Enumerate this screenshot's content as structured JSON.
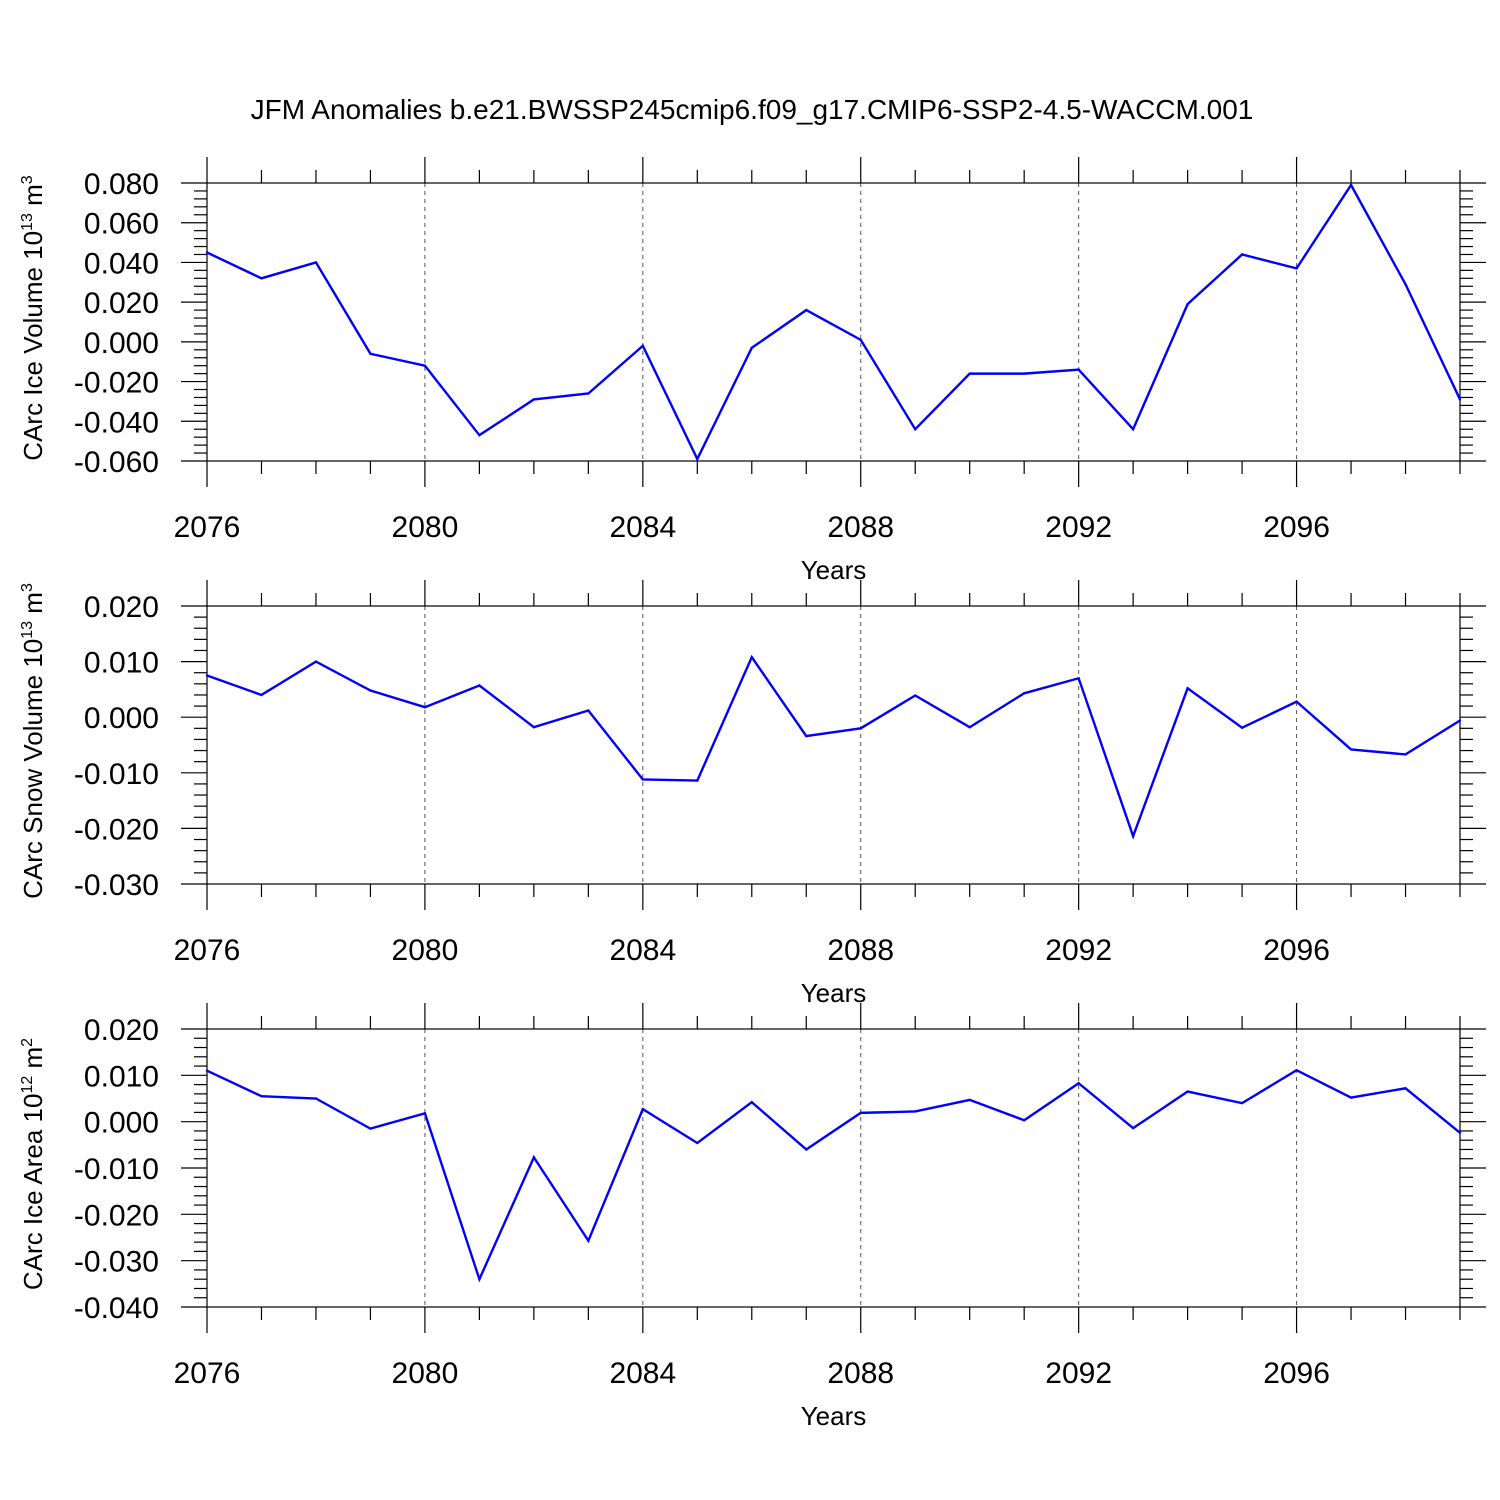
{
  "title": "JFM Anomalies b.e21.BWSSP245cmip6.f09_g17.CMIP6-SSP2-4.5-WACCM.001",
  "colors": {
    "series": "#0000ff",
    "axis": "#000000",
    "grid": "#555555"
  },
  "chart_data": [
    {
      "type": "line",
      "title": "",
      "xlabel": "Years",
      "ylabel": {
        "base": "CArc Ice Volume 10",
        "exp1": "13",
        "mid": " m",
        "exp2": "3"
      },
      "x": [
        2076,
        2077,
        2078,
        2079,
        2080,
        2081,
        2082,
        2083,
        2084,
        2085,
        2086,
        2087,
        2088,
        2089,
        2090,
        2091,
        2092,
        2093,
        2094,
        2095,
        2096,
        2097,
        2098,
        2099
      ],
      "values": [
        0.045,
        0.032,
        0.04,
        -0.006,
        -0.012,
        -0.047,
        -0.029,
        -0.026,
        -0.002,
        -0.059,
        -0.003,
        0.016,
        0.001,
        -0.044,
        -0.016,
        -0.016,
        -0.014,
        -0.044,
        0.019,
        0.044,
        0.037,
        0.079,
        0.029,
        -0.029
      ],
      "xlim": [
        2076,
        2099
      ],
      "ylim": [
        -0.06,
        0.08
      ],
      "xticks": [
        2076,
        2080,
        2084,
        2088,
        2092,
        2096
      ],
      "xtick_labels": [
        "2076",
        "2080",
        "2084",
        "2088",
        "2092",
        "2096"
      ],
      "yticks": [
        -0.06,
        -0.04,
        -0.02,
        0.0,
        0.02,
        0.04,
        0.06,
        0.08
      ],
      "ytick_labels": [
        "-0.060",
        "-0.040",
        "-0.020",
        "0.000",
        "0.020",
        "0.040",
        "0.060",
        "0.080"
      ],
      "grid": "vertical dashed at major x ticks"
    },
    {
      "type": "line",
      "title": "",
      "xlabel": "Years",
      "ylabel": {
        "base": "CArc Snow Volume 10",
        "exp1": "13",
        "mid": " m",
        "exp2": "3"
      },
      "x": [
        2076,
        2077,
        2078,
        2079,
        2080,
        2081,
        2082,
        2083,
        2084,
        2085,
        2086,
        2087,
        2088,
        2089,
        2090,
        2091,
        2092,
        2093,
        2094,
        2095,
        2096,
        2097,
        2098,
        2099
      ],
      "values": [
        0.0075,
        0.004,
        0.01,
        0.0048,
        0.0018,
        0.0057,
        -0.0018,
        0.0012,
        -0.0112,
        -0.0114,
        0.0108,
        -0.0034,
        -0.002,
        0.0039,
        -0.0018,
        0.0043,
        0.007,
        -0.0214,
        0.0052,
        -0.0019,
        0.0028,
        -0.0058,
        -0.0067,
        -0.0006
      ],
      "xlim": [
        2076,
        2099
      ],
      "ylim": [
        -0.03,
        0.02
      ],
      "xticks": [
        2076,
        2080,
        2084,
        2088,
        2092,
        2096
      ],
      "xtick_labels": [
        "2076",
        "2080",
        "2084",
        "2088",
        "2092",
        "2096"
      ],
      "yticks": [
        -0.03,
        -0.02,
        -0.01,
        0.0,
        0.01,
        0.02
      ],
      "ytick_labels": [
        "-0.030",
        "-0.020",
        "-0.010",
        "0.000",
        "0.010",
        "0.020"
      ],
      "grid": "vertical dashed at major x ticks"
    },
    {
      "type": "line",
      "title": "",
      "xlabel": "Years",
      "ylabel": {
        "base": "CArc Ice Area 10",
        "exp1": "12",
        "mid": " m",
        "exp2": "2"
      },
      "x": [
        2076,
        2077,
        2078,
        2079,
        2080,
        2081,
        2082,
        2083,
        2084,
        2085,
        2086,
        2087,
        2088,
        2089,
        2090,
        2091,
        2092,
        2093,
        2094,
        2095,
        2096,
        2097,
        2098,
        2099
      ],
      "values": [
        0.011,
        0.0055,
        0.005,
        -0.0015,
        0.0018,
        -0.034,
        -0.0077,
        -0.0257,
        0.0027,
        -0.0046,
        0.0042,
        -0.006,
        0.0019,
        0.0022,
        0.0047,
        0.0003,
        0.0083,
        -0.0014,
        0.0065,
        0.004,
        0.0111,
        0.0052,
        0.0072,
        -0.0024
      ],
      "xlim": [
        2076,
        2099
      ],
      "ylim": [
        -0.04,
        0.02
      ],
      "xticks": [
        2076,
        2080,
        2084,
        2088,
        2092,
        2096
      ],
      "xtick_labels": [
        "2076",
        "2080",
        "2084",
        "2088",
        "2092",
        "2096"
      ],
      "yticks": [
        -0.04,
        -0.03,
        -0.02,
        -0.01,
        0.0,
        0.01,
        0.02
      ],
      "ytick_labels": [
        "-0.040",
        "-0.030",
        "-0.020",
        "-0.010",
        "0.000",
        "0.010",
        "0.020"
      ],
      "grid": "vertical dashed at major x ticks"
    }
  ]
}
